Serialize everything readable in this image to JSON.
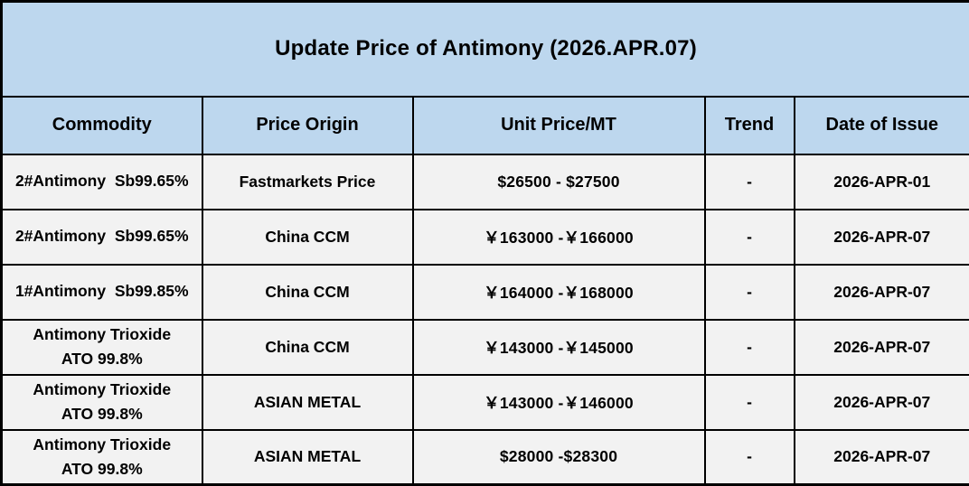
{
  "chart_data": {
    "type": "table",
    "title": "Update Price of Antimony (2026.APR.07)",
    "columns": [
      "Commodity",
      "Price Origin",
      "Unit Price/MT",
      "Trend",
      "Date of Issue"
    ],
    "rows": [
      {
        "commodity": "2#Antimony  Sb99.65%",
        "origin": "Fastmarkets Price",
        "price": "$26500 - $27500",
        "trend": "-",
        "date": "2026-APR-01"
      },
      {
        "commodity": "2#Antimony  Sb99.65%",
        "origin": "China CCM",
        "price": "￥163000 -￥166000",
        "trend": "-",
        "date": "2026-APR-07"
      },
      {
        "commodity": "1#Antimony  Sb99.85%",
        "origin": "China CCM",
        "price": "￥164000 -￥168000",
        "trend": "-",
        "date": "2026-APR-07"
      },
      {
        "commodity": "Antimony Trioxide\nATO 99.8%",
        "origin": "China CCM",
        "price": "￥143000 -￥145000",
        "trend": "-",
        "date": "2026-APR-07"
      },
      {
        "commodity": "Antimony Trioxide\nATO 99.8%",
        "origin": "ASIAN METAL",
        "price": "￥143000 -￥146000",
        "trend": "-",
        "date": "2026-APR-07"
      },
      {
        "commodity": "Antimony Trioxide\nATO 99.8%",
        "origin": "ASIAN METAL",
        "price": "$28000 -$28300",
        "trend": "-",
        "date": "2026-APR-07"
      }
    ]
  },
  "colors": {
    "title_header_bg": "#BDD7EE",
    "row_bg": "#F2F2F2",
    "border": "#000000",
    "text": "#000000"
  }
}
